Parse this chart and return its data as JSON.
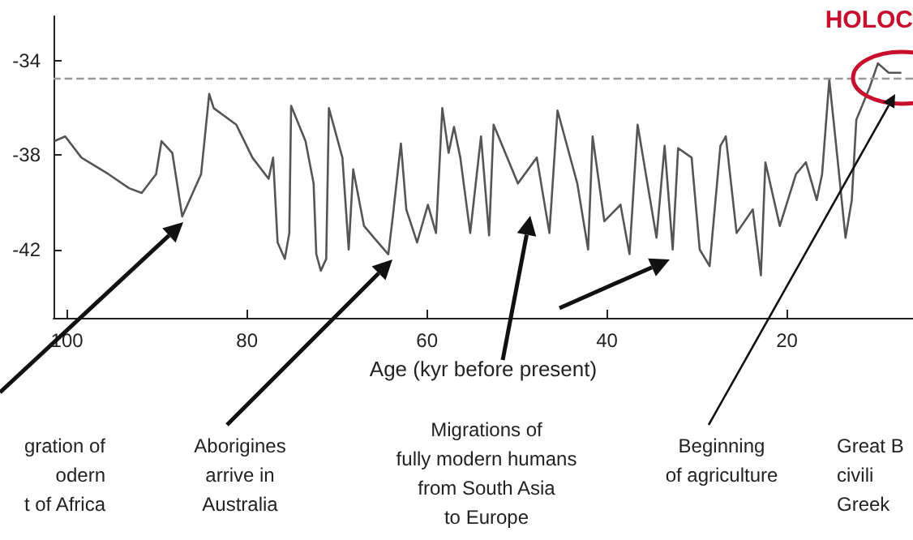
{
  "chart_data": {
    "type": "line",
    "xlabel": "Age (kyr before present)",
    "x": [
      101.4,
      100.2,
      98.4,
      95.4,
      93.1,
      91.7,
      90.1,
      89.5,
      88.3,
      87.2,
      85.1,
      84.2,
      83.7,
      81.2,
      79.4,
      77.6,
      77.1,
      76.6,
      75.8,
      75.3,
      75.1,
      73.5,
      72.6,
      72.3,
      71.8,
      71.2,
      70.9,
      69.4,
      68.7,
      68.2,
      67.0,
      65.9,
      64.3,
      63.8,
      62.9,
      62.3,
      61.1,
      59.9,
      59.0,
      58.3,
      57.6,
      57.0,
      56.3,
      55.2,
      54.0,
      53.1,
      52.6,
      49.9,
      47.8,
      46.4,
      45.5,
      43.3,
      42.1,
      41.6,
      40.3,
      38.5,
      37.5,
      36.6,
      34.5,
      33.6,
      32.7,
      32.1,
      30.6,
      29.7,
      28.6,
      27.4,
      26.8,
      25.6,
      23.8,
      22.9,
      22.4,
      20.8,
      19.0,
      17.9,
      16.7,
      16.1,
      15.3,
      14.4,
      13.5,
      12.8,
      12.3,
      10.8,
      9.9,
      8.7,
      7.3
    ],
    "series": [
      {
        "color": "#555555",
        "values": [
          -37.4,
          -37.2,
          -38.1,
          -38.8,
          -39.4,
          -39.6,
          -38.8,
          -37.4,
          -37.9,
          -40.6,
          -38.8,
          -35.4,
          -36.0,
          -36.7,
          -38.1,
          -39.0,
          -38.1,
          -41.7,
          -42.4,
          -41.3,
          -35.9,
          -37.4,
          -39.2,
          -42.2,
          -42.9,
          -42.4,
          -36.0,
          -38.1,
          -42.0,
          -38.6,
          -41.0,
          -41.5,
          -42.2,
          -40.6,
          -37.5,
          -40.3,
          -41.7,
          -40.1,
          -41.3,
          -36.0,
          -37.9,
          -36.8,
          -38.1,
          -41.3,
          -37.2,
          -41.4,
          -36.7,
          -39.2,
          -38.1,
          -41.3,
          -36.1,
          -39.2,
          -42.0,
          -37.2,
          -40.8,
          -40.1,
          -42.2,
          -36.7,
          -41.5,
          -37.6,
          -42.0,
          -37.7,
          -38.1,
          -42.0,
          -42.7,
          -37.6,
          -37.2,
          -41.3,
          -40.3,
          -43.1,
          -38.3,
          -41.0,
          -38.8,
          -38.3,
          -39.9,
          -38.8,
          -34.8,
          -38.1,
          -41.5,
          -39.9,
          -36.5,
          -35.1,
          -34.1,
          -34.5,
          -34.5
        ]
      }
    ],
    "xlim": [
      101.5,
      6
    ],
    "xticks": [
      100,
      80,
      60,
      40,
      20
    ],
    "ylim": [
      -44.9,
      -32.1
    ],
    "yticks": [
      -34,
      -38,
      -42
    ],
    "ref_lines": [
      {
        "axis": "y",
        "value": -34.75,
        "color": "#999999",
        "line_style": "dashed"
      }
    ],
    "grid": false,
    "marker": "none",
    "line_style": "solid",
    "annotations": [
      "HOLOC",
      "gration of\nodern\nt of Africa",
      "Aborigines\narrive in\nAustralia",
      "Migrations of\nfully modern humans\nfrom South Asia\nto Europe",
      "Beginning\nof agriculture",
      "Great B\ncivili\nGreek"
    ]
  }
}
